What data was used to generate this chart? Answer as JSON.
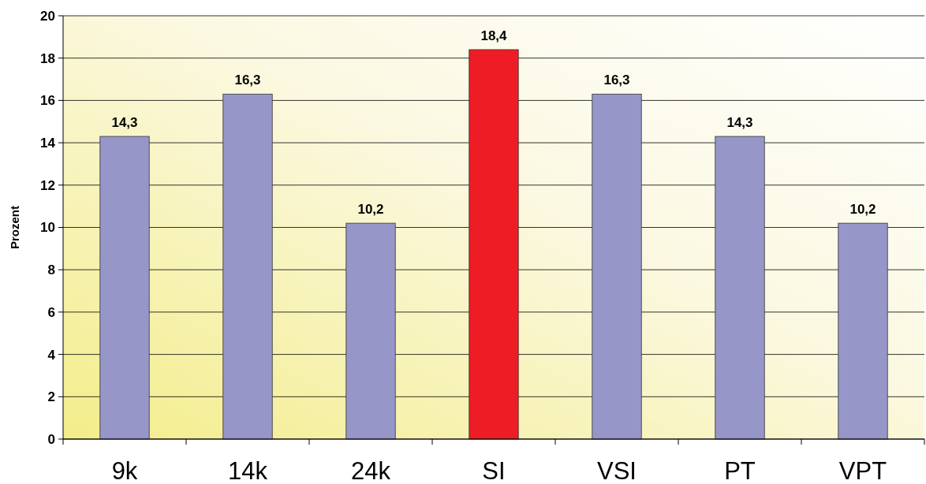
{
  "chart_data": {
    "type": "bar",
    "ylabel": "Prozent",
    "categories": [
      "9k",
      "14k",
      "24k",
      "SI",
      "VSI",
      "PT",
      "VPT"
    ],
    "values": [
      14.3,
      16.3,
      10.2,
      18.4,
      16.3,
      14.3,
      10.2
    ],
    "colors": [
      "#9696c8",
      "#9696c8",
      "#9696c8",
      "#ee1c24",
      "#9696c8",
      "#9696c8",
      "#9696c8"
    ],
    "value_labels": [
      "14,3",
      "16,3",
      "10,2",
      "18,4",
      "16,3",
      "14,3",
      "10,2"
    ],
    "ylim": [
      0,
      20
    ],
    "yticks": [
      0,
      2,
      4,
      6,
      8,
      10,
      12,
      14,
      16,
      18,
      20
    ],
    "grid": "y"
  }
}
